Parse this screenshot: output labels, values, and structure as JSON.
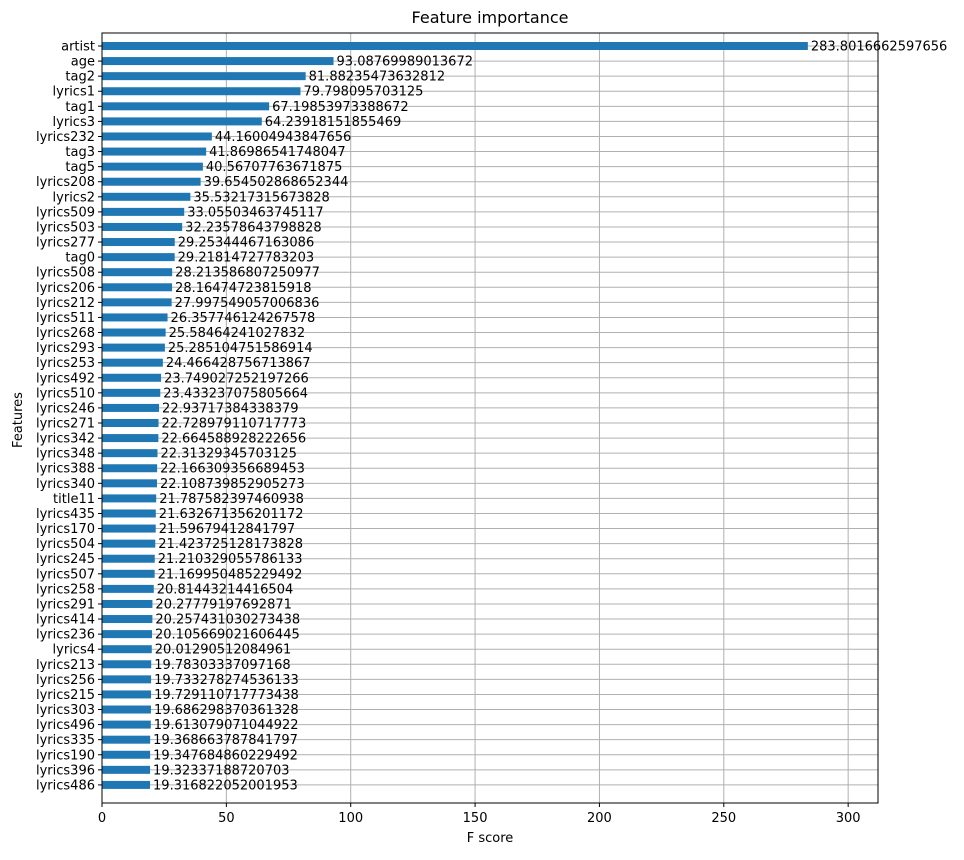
{
  "chart_data": {
    "type": "bar",
    "orientation": "horizontal",
    "title": "Feature importance",
    "xlabel": "F score",
    "ylabel": "Features",
    "xlim": [
      0,
      312
    ],
    "xticks": [
      0,
      50,
      100,
      150,
      200,
      250,
      300
    ],
    "grid": true,
    "bar_color": "#1f77b4",
    "categories": [
      "artist",
      "age",
      "tag2",
      "lyrics1",
      "tag1",
      "lyrics3",
      "lyrics232",
      "tag3",
      "tag5",
      "lyrics208",
      "lyrics2",
      "lyrics509",
      "lyrics503",
      "lyrics277",
      "tag0",
      "lyrics508",
      "lyrics206",
      "lyrics212",
      "lyrics511",
      "lyrics268",
      "lyrics293",
      "lyrics253",
      "lyrics492",
      "lyrics510",
      "lyrics246",
      "lyrics271",
      "lyrics342",
      "lyrics348",
      "lyrics388",
      "lyrics340",
      "title11",
      "lyrics435",
      "lyrics170",
      "lyrics504",
      "lyrics245",
      "lyrics507",
      "lyrics258",
      "lyrics291",
      "lyrics414",
      "lyrics236",
      "lyrics4",
      "lyrics213",
      "lyrics256",
      "lyrics215",
      "lyrics303",
      "lyrics496",
      "lyrics335",
      "lyrics190",
      "lyrics396",
      "lyrics486"
    ],
    "values": [
      283.8016662597656,
      93.08769989013672,
      81.88235473632812,
      79.798095703125,
      67.19853973388672,
      64.23918151855469,
      44.16004943847656,
      41.86986541748047,
      40.56707763671875,
      39.654502868652344,
      35.53217315673828,
      33.05503463745117,
      32.23578643798828,
      29.25344467163086,
      29.21814727783203,
      28.213586807250977,
      28.16474723815918,
      27.997549057006836,
      26.357746124267578,
      25.58464241027832,
      25.285104751586914,
      24.466428756713867,
      23.749027252197266,
      23.433237075805664,
      22.93717384338379,
      22.728979110717773,
      22.664588928222656,
      22.31329345703125,
      22.166309356689453,
      22.108739852905273,
      21.787582397460938,
      21.632671356201172,
      21.59679412841797,
      21.423725128173828,
      21.210329055786133,
      21.169950485229492,
      20.81443214416504,
      20.27779197692871,
      20.257431030273438,
      20.105669021606445,
      20.01290512084961,
      19.78303337097168,
      19.733278274536133,
      19.729110717773438,
      19.686298370361328,
      19.613079071044922,
      19.368663787841797,
      19.347684860229492,
      19.32337188720703,
      19.316822052001953
    ],
    "labels": [
      "283.8016662597656",
      "93.08769989013672",
      "81.88235473632812",
      "79.798095703125",
      "67.19853973388672",
      "64.23918151855469",
      "44.16004943847656",
      "41.86986541748047",
      "40.56707763671875",
      "39.654502868652344",
      "35.53217315673828",
      "33.05503463745117",
      "32.23578643798828",
      "29.25344467163086",
      "29.21814727783203",
      "28.213586807250977",
      "28.16474723815918",
      "27.997549057006836",
      "26.357746124267578",
      "25.58464241027832",
      "25.285104751586914",
      "24.466428756713867",
      "23.749027252197266",
      "23.433237075805664",
      "22.93717384338379",
      "22.728979110717773",
      "22.664588928222656",
      "22.31329345703125",
      "22.166309356689453",
      "22.108739852905273",
      "21.787582397460938",
      "21.632671356201172",
      "21.59679412841797",
      "21.423725128173828",
      "21.210329055786133",
      "21.169950485229492",
      "20.81443214416504",
      "20.27779197692871",
      "20.257431030273438",
      "20.105669021606445",
      "20.01290512084961",
      "19.78303337097168",
      "19.733278274536133",
      "19.729110717773438",
      "19.686298370361328",
      "19.613079071044922",
      "19.368663787841797",
      "19.347684860229492",
      "19.32337188720703",
      "19.316822052001953"
    ]
  }
}
